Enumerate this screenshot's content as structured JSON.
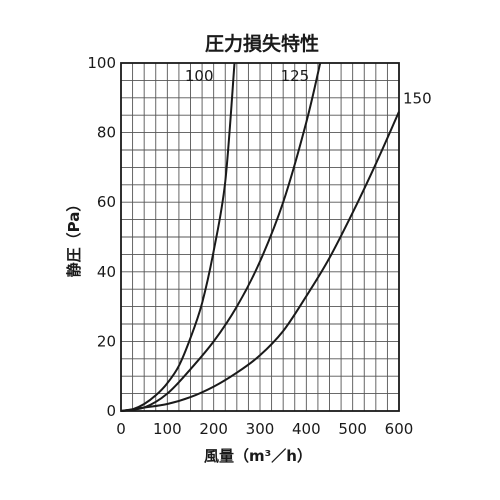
{
  "chart_data": {
    "type": "line",
    "title": "圧力損失特性",
    "xlabel": "風量（m³／h）",
    "ylabel": "静圧（Pa）",
    "xlim": [
      0,
      600
    ],
    "ylim": [
      0,
      100
    ],
    "x_ticks": [
      "0",
      "100",
      "200",
      "300",
      "400",
      "500",
      "600"
    ],
    "y_ticks": [
      "0",
      "20",
      "40",
      "60",
      "80",
      "100"
    ],
    "grid": true,
    "legend": "none",
    "series": [
      {
        "name": "100",
        "x": [
          0,
          25,
          50,
          75,
          100,
          125,
          150,
          175,
          200,
          225,
          245
        ],
        "y": [
          0,
          0.5,
          2,
          4.5,
          8,
          13,
          21,
          31,
          46,
          66,
          100
        ]
      },
      {
        "name": "125",
        "x": [
          0,
          50,
          100,
          150,
          200,
          250,
          300,
          350,
          400,
          430
        ],
        "y": [
          0,
          1,
          5,
          12,
          20,
          30,
          43,
          60,
          83,
          100
        ]
      },
      {
        "name": "150",
        "x": [
          0,
          50,
          100,
          150,
          200,
          250,
          300,
          350,
          400,
          450,
          500,
          550,
          600
        ],
        "y": [
          0,
          1,
          2,
          4,
          7,
          11,
          16,
          23,
          33,
          44,
          57,
          71,
          86
        ]
      }
    ]
  }
}
